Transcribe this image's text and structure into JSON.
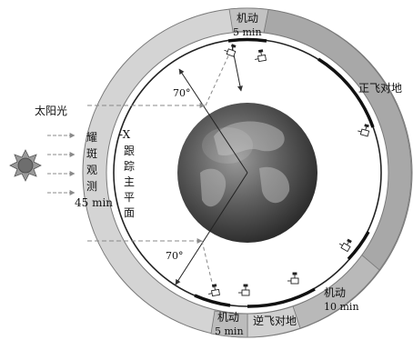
{
  "labels": {
    "sunlight": "太阳光",
    "flare_obs_chars": [
      "耀",
      "斑",
      "观",
      "测"
    ],
    "flare_obs_time": "45 min",
    "plane_top": "-X",
    "plane_chars": [
      "跟",
      "踪",
      "主",
      "平",
      "面"
    ],
    "maneuver_top_name": "机动",
    "maneuver_top_time": "5 min",
    "forward_earth": "正飞对地",
    "maneuver_right_name": "机动",
    "maneuver_right_time": "10 min",
    "reverse_earth": "逆飞对地",
    "maneuver_bottom_name": "机动",
    "maneuver_bottom_time": "5 min",
    "angle_top": "70°",
    "angle_bottom": "70°"
  },
  "colors": {
    "ring_light": "#d4d4d4",
    "ring_dark": "#a6a6a6",
    "ring_mid": "#bdbdbd",
    "stroke": "#555555",
    "sun": "#7d7d7d"
  },
  "icons": [
    "sun-icon",
    "earth-globe",
    "satellite-icon"
  ]
}
